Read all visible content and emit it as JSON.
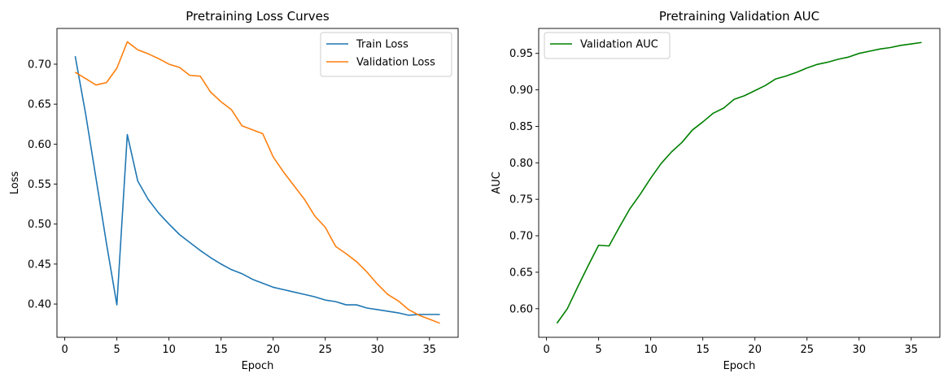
{
  "chart_data": [
    {
      "type": "line",
      "title": "Pretraining Loss Curves",
      "xlabel": "Epoch",
      "ylabel": "Loss",
      "xlim": [
        -0.75,
        37.75
      ],
      "ylim": [
        0.3584,
        0.7447
      ],
      "xticks": [
        0,
        5,
        10,
        15,
        20,
        25,
        30,
        35
      ],
      "yticks": [
        0.4,
        0.45,
        0.5,
        0.55,
        0.6,
        0.65,
        0.7
      ],
      "yticks_labels": [
        "0.40",
        "0.45",
        "0.50",
        "0.55",
        "0.60",
        "0.65",
        "0.70"
      ],
      "grid": false,
      "legend": "upper right",
      "x": [
        1,
        2,
        3,
        4,
        5,
        6,
        7,
        8,
        9,
        10,
        11,
        12,
        13,
        14,
        15,
        16,
        17,
        18,
        19,
        20,
        21,
        22,
        23,
        24,
        25,
        26,
        27,
        28,
        29,
        30,
        31,
        32,
        33,
        34,
        35,
        36
      ],
      "series": [
        {
          "name": "Train Loss",
          "color": "#1f77b4",
          "values": [
            0.71,
            0.638,
            0.557,
            0.476,
            0.399,
            0.612,
            0.554,
            0.531,
            0.514,
            0.5,
            0.487,
            0.477,
            0.467,
            0.458,
            0.45,
            0.443,
            0.438,
            0.431,
            0.426,
            0.421,
            0.418,
            0.415,
            0.412,
            0.409,
            0.405,
            0.403,
            0.399,
            0.399,
            0.395,
            0.393,
            0.391,
            0.389,
            0.386,
            0.387,
            0.387,
            0.387
          ]
        },
        {
          "name": "Validation Loss",
          "color": "#ff7f0e",
          "values": [
            0.69,
            0.682,
            0.674,
            0.677,
            0.695,
            0.728,
            0.718,
            0.713,
            0.707,
            0.7,
            0.696,
            0.686,
            0.685,
            0.665,
            0.653,
            0.643,
            0.623,
            0.618,
            0.613,
            0.584,
            0.565,
            0.548,
            0.531,
            0.51,
            0.496,
            0.472,
            0.463,
            0.453,
            0.44,
            0.425,
            0.412,
            0.404,
            0.393,
            0.386,
            0.381,
            0.376
          ]
        }
      ]
    },
    {
      "type": "line",
      "title": "Pretraining Validation AUC",
      "xlabel": "Epoch",
      "ylabel": "AUC",
      "xlim": [
        -0.75,
        37.75
      ],
      "ylim": [
        0.5608,
        0.9842
      ],
      "xticks": [
        0,
        5,
        10,
        15,
        20,
        25,
        30,
        35
      ],
      "yticks": [
        0.6,
        0.65,
        0.7,
        0.75,
        0.8,
        0.85,
        0.9,
        0.95
      ],
      "yticks_labels": [
        "0.60",
        "0.65",
        "0.70",
        "0.75",
        "0.80",
        "0.85",
        "0.90",
        "0.95"
      ],
      "grid": false,
      "legend": "upper left",
      "x": [
        1,
        2,
        3,
        4,
        5,
        6,
        7,
        8,
        9,
        10,
        11,
        12,
        13,
        14,
        15,
        16,
        17,
        18,
        19,
        20,
        21,
        22,
        23,
        24,
        25,
        26,
        27,
        28,
        29,
        30,
        31,
        32,
        33,
        34,
        35,
        36
      ],
      "series": [
        {
          "name": "Validation AUC",
          "color": "#008000",
          "values": [
            0.58,
            0.6,
            0.63,
            0.659,
            0.687,
            0.686,
            0.712,
            0.737,
            0.757,
            0.779,
            0.799,
            0.815,
            0.828,
            0.845,
            0.856,
            0.868,
            0.875,
            0.887,
            0.892,
            0.899,
            0.906,
            0.915,
            0.919,
            0.924,
            0.93,
            0.935,
            0.938,
            0.942,
            0.945,
            0.95,
            0.953,
            0.956,
            0.958,
            0.961,
            0.963,
            0.965
          ]
        }
      ]
    }
  ]
}
